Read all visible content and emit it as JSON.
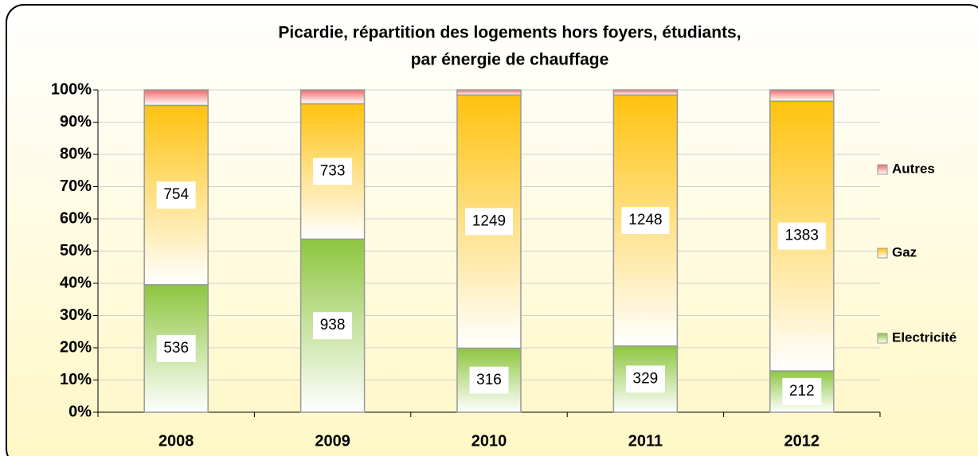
{
  "chart_data": {
    "type": "bar",
    "stacked": "percent",
    "title": [
      "Picardie, répartition des logements hors foyers, étudiants,",
      "par énergie de chauffage"
    ],
    "categories": [
      "2008",
      "2009",
      "2010",
      "2011",
      "2012"
    ],
    "series": [
      {
        "name": "Electricité",
        "color": "#8dc63f",
        "values": [
          536,
          938,
          316,
          329,
          212
        ],
        "labels_shown": true
      },
      {
        "name": "Gaz",
        "color": "#ffc20e",
        "values": [
          754,
          733,
          1249,
          1248,
          1383
        ],
        "labels_shown": true
      },
      {
        "name": "Autres",
        "color": "#f06a6a",
        "values": [
          65,
          75,
          25,
          25,
          58
        ],
        "labels_shown": false
      }
    ],
    "ylim": [
      0,
      100
    ],
    "yticks": [
      {
        "value": 0,
        "label": "0%"
      },
      {
        "value": 10,
        "label": "10%"
      },
      {
        "value": 20,
        "label": "20%"
      },
      {
        "value": 30,
        "label": "30%"
      },
      {
        "value": 40,
        "label": "40%"
      },
      {
        "value": 50,
        "label": "50%"
      },
      {
        "value": 60,
        "label": "60%"
      },
      {
        "value": 70,
        "label": "70%"
      },
      {
        "value": 80,
        "label": "80%"
      },
      {
        "value": 90,
        "label": "90%"
      },
      {
        "value": 100,
        "label": "100%"
      }
    ],
    "grid": true,
    "legend": "right"
  }
}
